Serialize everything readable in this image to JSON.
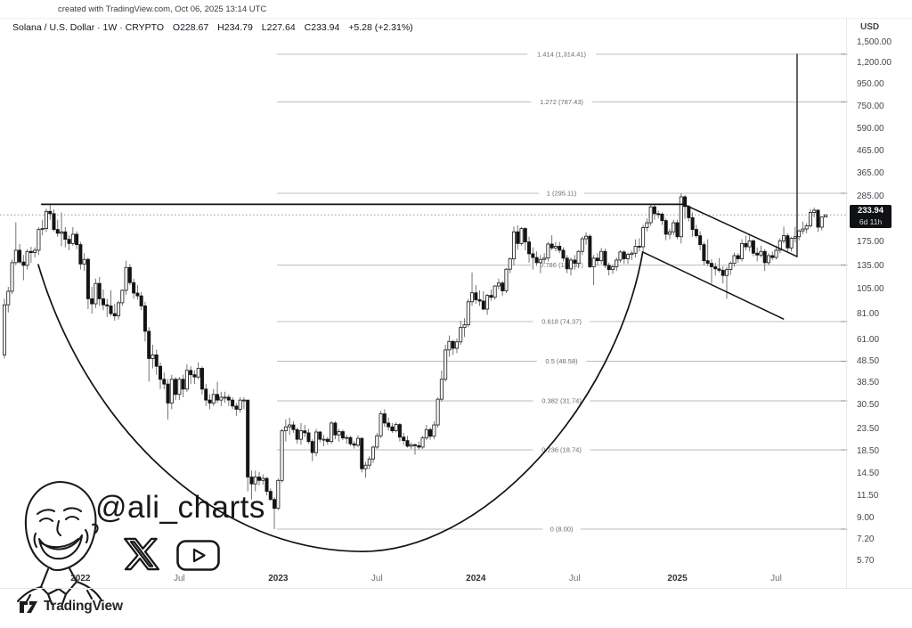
{
  "meta": {
    "created_with": "created with TradingView.com, Oct 06, 2025 13:14 UTC"
  },
  "header": {
    "symbol": "Solana / U.S. Dollar",
    "interval": "1W",
    "exchange": "CRYPTO",
    "title": "Solana / U.S. Dollar · 1W · CRYPTO",
    "open": "O228.67",
    "high": "H234.79",
    "low": "L227.64",
    "close": "C233.94",
    "change": "+5.28 (+2.31%)"
  },
  "price_scale": {
    "currency": "USD",
    "labels": [
      "1,500.00",
      "1,200.00",
      "950.00",
      "750.00",
      "590.00",
      "465.00",
      "365.00",
      "285.00",
      "175.00",
      "135.00",
      "105.00",
      "81.00",
      "61.00",
      "48.50",
      "38.50",
      "30.50",
      "23.50",
      "18.50",
      "14.50",
      "11.50",
      "9.00",
      "7.20",
      "5.70"
    ],
    "values": [
      1500,
      1200,
      950,
      750,
      590,
      465,
      365,
      285,
      175,
      135,
      105,
      81,
      61,
      48.5,
      38.5,
      30.5,
      23.5,
      18.5,
      14.5,
      11.5,
      9,
      7.2,
      5.7
    ],
    "current_price_label": "233.94",
    "current_price_value": 233.94,
    "bar_countdown": "6d 11h"
  },
  "time_scale": [
    {
      "label": "2022",
      "week": 20,
      "kind": "year"
    },
    {
      "label": "Jul",
      "week": 46,
      "kind": "month"
    },
    {
      "label": "2023",
      "week": 72,
      "kind": "year"
    },
    {
      "label": "Jul",
      "week": 98,
      "kind": "month"
    },
    {
      "label": "2024",
      "week": 124,
      "kind": "year"
    },
    {
      "label": "Jul",
      "week": 150,
      "kind": "month"
    },
    {
      "label": "2025",
      "week": 177,
      "kind": "year"
    },
    {
      "label": "Jul",
      "week": 203,
      "kind": "month"
    }
  ],
  "colors": {
    "up_candle": "#ffffff",
    "down_candle": "#141414",
    "candle_border": "#141414",
    "wick": "#63656b",
    "fib_line": "#b9bcc3",
    "fib_text": "#686b74",
    "axis_tick": "#8c8f98",
    "annotation": "#121212",
    "current_price_line": "#9598a1"
  },
  "chart_data": {
    "type": "candlestick",
    "symbol": "SOL/USD",
    "timeframe": "1W",
    "scale": "logarithmic",
    "first_week": "2021-08-16",
    "last_week": "2025-10-06",
    "note": "weekly OHLC, black-and-white TradingView style; cup-and-handle pattern with log-scale fib extension from 8.00 low (Dec 2022) to 295.11 high (Jan 2025)",
    "candles": [
      [
        52,
        95,
        50,
        89
      ],
      [
        89,
        108,
        82,
        103
      ],
      [
        103,
        145,
        100,
        140
      ],
      [
        140,
        216,
        136,
        160
      ],
      [
        160,
        171,
        138,
        141
      ],
      [
        141,
        152,
        116,
        136
      ],
      [
        136,
        162,
        130,
        158
      ],
      [
        158,
        166,
        140,
        156
      ],
      [
        156,
        165,
        148,
        160
      ],
      [
        160,
        205,
        152,
        200
      ],
      [
        200,
        222,
        188,
        202
      ],
      [
        202,
        250,
        195,
        243
      ],
      [
        243,
        260,
        222,
        237
      ],
      [
        237,
        248,
        196,
        200
      ],
      [
        200,
        222,
        185,
        192
      ],
      [
        192,
        240,
        167,
        195
      ],
      [
        195,
        205,
        165,
        180
      ],
      [
        180,
        188,
        160,
        172
      ],
      [
        172,
        205,
        168,
        190
      ],
      [
        190,
        196,
        162,
        170
      ],
      [
        170,
        175,
        130,
        138
      ],
      [
        138,
        155,
        128,
        145
      ],
      [
        145,
        148,
        85,
        95
      ],
      [
        95,
        108,
        81,
        90
      ],
      [
        90,
        118,
        86,
        112
      ],
      [
        112,
        120,
        88,
        95
      ],
      [
        95,
        105,
        84,
        89
      ],
      [
        89,
        95,
        78,
        88
      ],
      [
        88,
        104,
        79,
        81
      ],
      [
        81,
        90,
        75,
        79
      ],
      [
        79,
        93,
        76,
        91
      ],
      [
        91,
        105,
        88,
        104
      ],
      [
        104,
        143,
        99,
        133
      ],
      [
        133,
        138,
        110,
        113
      ],
      [
        113,
        118,
        95,
        101
      ],
      [
        101,
        110,
        94,
        98
      ],
      [
        98,
        102,
        84,
        88
      ],
      [
        88,
        92,
        60,
        67
      ],
      [
        67,
        70,
        39,
        50
      ],
      [
        50,
        58,
        45,
        52
      ],
      [
        52,
        55,
        42,
        46
      ],
      [
        46,
        48,
        36,
        40
      ],
      [
        40,
        43,
        36,
        38
      ],
      [
        38,
        40,
        26,
        31
      ],
      [
        31,
        42,
        29,
        40
      ],
      [
        40,
        41,
        32,
        34
      ],
      [
        34,
        41,
        32,
        40
      ],
      [
        40,
        42,
        33,
        36
      ],
      [
        36,
        47,
        35,
        44
      ],
      [
        44,
        46,
        38,
        42
      ],
      [
        42,
        44,
        38,
        41
      ],
      [
        41,
        48,
        40,
        45
      ],
      [
        45,
        46,
        34,
        36
      ],
      [
        36,
        38,
        30,
        32
      ],
      [
        32,
        34,
        29,
        31
      ],
      [
        31,
        36,
        30,
        34
      ],
      [
        34,
        39,
        31,
        32
      ],
      [
        32,
        35,
        30,
        33
      ],
      [
        33,
        35,
        31,
        33
      ],
      [
        33,
        34,
        30,
        32
      ],
      [
        32,
        33,
        29,
        30
      ],
      [
        30,
        31,
        27,
        29
      ],
      [
        29,
        33,
        28,
        32
      ],
      [
        32,
        33,
        29,
        32
      ],
      [
        32,
        32,
        12,
        14
      ],
      [
        14,
        15,
        11,
        13
      ],
      [
        13,
        15,
        12,
        14
      ],
      [
        14,
        14.8,
        12.8,
        13.5
      ],
      [
        13.5,
        14.4,
        12.9,
        13.8
      ],
      [
        13.8,
        14,
        11.5,
        12
      ],
      [
        12,
        12.4,
        10.8,
        11
      ],
      [
        11,
        11.3,
        8,
        10
      ],
      [
        10,
        13.8,
        9.8,
        13.5
      ],
      [
        13.5,
        23.5,
        13.2,
        23
      ],
      [
        23,
        26,
        20.5,
        24
      ],
      [
        24,
        26.5,
        22,
        24.5
      ],
      [
        24.5,
        25.5,
        22.5,
        23.3
      ],
      [
        23.3,
        23.8,
        20,
        21
      ],
      [
        21,
        25,
        19.8,
        23
      ],
      [
        23,
        24.5,
        21.5,
        22.5
      ],
      [
        22.5,
        23.5,
        20,
        20.5
      ],
      [
        20.5,
        21,
        16.6,
        18.2
      ],
      [
        18.2,
        23.5,
        17.5,
        22.7
      ],
      [
        22.7,
        23,
        20.3,
        21
      ],
      [
        21,
        22,
        19.5,
        21
      ],
      [
        21,
        21.5,
        19.8,
        20.5
      ],
      [
        20.5,
        25.5,
        20,
        25
      ],
      [
        25,
        25.5,
        21,
        22
      ],
      [
        22,
        23.5,
        20.5,
        22.8
      ],
      [
        22.8,
        23.3,
        20.8,
        21.3
      ],
      [
        21.3,
        22,
        20,
        21.4
      ],
      [
        21.4,
        21.8,
        19.6,
        20
      ],
      [
        20,
        20.6,
        19,
        19.7
      ],
      [
        19.7,
        21.9,
        19.3,
        21.2
      ],
      [
        21.2,
        21.5,
        14.7,
        15.3
      ],
      [
        15.3,
        16.5,
        13.9,
        15.9
      ],
      [
        15.9,
        17.5,
        15.2,
        17
      ],
      [
        17,
        19.6,
        16.3,
        19.3
      ],
      [
        19.3,
        22.5,
        18.9,
        21.8
      ],
      [
        21.8,
        28.5,
        21.3,
        27.6
      ],
      [
        27.6,
        29,
        24,
        25
      ],
      [
        25,
        26.5,
        23,
        24
      ],
      [
        24,
        25,
        22.5,
        23
      ],
      [
        23,
        25.2,
        22.6,
        24.6
      ],
      [
        24.6,
        25,
        20.5,
        21.5
      ],
      [
        21.5,
        22.5,
        19.8,
        20.7
      ],
      [
        20.7,
        21.8,
        19.2,
        19.5
      ],
      [
        19.5,
        20.3,
        18.9,
        19.8
      ],
      [
        19.8,
        20.1,
        17.8,
        19.6
      ],
      [
        19.6,
        20.5,
        18.8,
        19.3
      ],
      [
        19.3,
        21.8,
        18.9,
        21.3
      ],
      [
        21.3,
        24.5,
        20.8,
        23.3
      ],
      [
        23.3,
        23.8,
        20.9,
        21.7
      ],
      [
        21.7,
        25.5,
        21,
        24.5
      ],
      [
        24.5,
        32.9,
        23.8,
        32.3
      ],
      [
        32.3,
        44,
        31.5,
        40
      ],
      [
        40,
        58,
        39,
        54.8
      ],
      [
        54.8,
        64,
        51,
        60.1
      ],
      [
        60.1,
        61,
        52,
        55.8
      ],
      [
        55.8,
        62,
        53,
        59.8
      ],
      [
        59.8,
        75,
        58,
        69.8
      ],
      [
        69.8,
        77,
        63,
        71.8
      ],
      [
        71.8,
        95,
        70,
        92
      ],
      [
        92,
        126,
        88,
        101.3
      ],
      [
        101.3,
        110,
        90,
        94
      ],
      [
        94,
        104,
        88,
        92.7
      ],
      [
        92.7,
        103,
        84,
        85
      ],
      [
        85,
        100,
        79.9,
        98.5
      ],
      [
        98.5,
        105,
        93,
        96.5
      ],
      [
        96.5,
        110,
        94,
        109
      ],
      [
        109,
        118,
        105,
        112.5
      ],
      [
        112.5,
        115,
        98,
        103.5
      ],
      [
        103.5,
        132,
        101,
        130.5
      ],
      [
        130.5,
        148,
        125,
        145.8
      ],
      [
        145.8,
        206,
        136,
        195
      ],
      [
        195,
        209,
        161,
        172
      ],
      [
        172,
        205,
        168,
        202
      ],
      [
        202,
        205,
        160,
        175
      ],
      [
        175,
        185,
        140,
        154
      ],
      [
        154,
        165,
        130,
        148
      ],
      [
        148,
        158,
        135,
        140
      ],
      [
        140,
        152,
        125,
        145
      ],
      [
        145,
        155,
        138,
        147
      ],
      [
        147,
        175,
        142,
        171
      ],
      [
        171,
        188,
        160,
        164
      ],
      [
        164,
        175,
        158,
        167
      ],
      [
        167,
        175,
        155,
        160
      ],
      [
        160,
        165,
        142,
        147
      ],
      [
        147,
        152,
        125,
        131
      ],
      [
        131,
        148,
        122,
        144
      ],
      [
        144,
        152,
        130,
        139
      ],
      [
        139,
        160,
        132,
        158
      ],
      [
        158,
        185,
        152,
        181
      ],
      [
        181,
        194,
        170,
        186
      ],
      [
        186,
        190,
        132,
        134
      ],
      [
        134,
        152,
        110,
        147
      ],
      [
        147,
        155,
        136,
        143
      ],
      [
        143,
        164,
        138,
        158
      ],
      [
        158,
        163,
        132,
        136
      ],
      [
        136,
        140,
        122,
        130
      ],
      [
        130,
        137,
        124,
        134
      ],
      [
        134,
        148,
        128,
        144
      ],
      [
        144,
        160,
        140,
        157
      ],
      [
        157,
        160,
        138,
        146
      ],
      [
        146,
        156,
        138,
        153
      ],
      [
        153,
        159,
        144,
        155
      ],
      [
        155,
        180,
        148,
        167
      ],
      [
        167,
        182,
        158,
        166
      ],
      [
        166,
        210,
        158,
        204
      ],
      [
        204,
        225,
        196,
        215
      ],
      [
        215,
        264,
        208,
        255
      ],
      [
        255,
        260,
        222,
        237
      ],
      [
        237,
        245,
        225,
        236
      ],
      [
        236,
        240,
        210,
        220
      ],
      [
        220,
        225,
        178,
        190
      ],
      [
        190,
        202,
        180,
        195
      ],
      [
        195,
        222,
        188,
        215
      ],
      [
        215,
        222,
        180,
        185
      ],
      [
        185,
        295,
        172,
        284
      ],
      [
        284,
        289,
        224,
        256
      ],
      [
        256,
        260,
        218,
        227
      ],
      [
        227,
        240,
        185,
        200
      ],
      [
        200,
        210,
        183,
        187
      ],
      [
        187,
        196,
        160,
        170
      ],
      [
        170,
        175,
        136,
        143
      ],
      [
        143,
        180,
        135,
        139
      ],
      [
        139,
        145,
        112,
        134
      ],
      [
        134,
        140,
        122,
        131
      ],
      [
        131,
        147,
        126,
        129
      ],
      [
        129,
        135,
        112,
        122
      ],
      [
        122,
        134,
        95,
        130
      ],
      [
        130,
        142,
        123,
        139
      ],
      [
        139,
        156,
        134,
        151
      ],
      [
        151,
        155,
        140,
        146
      ],
      [
        146,
        180,
        142,
        172
      ],
      [
        172,
        187,
        160,
        166
      ],
      [
        166,
        188,
        158,
        177
      ],
      [
        177,
        180,
        150,
        155
      ],
      [
        155,
        165,
        142,
        152
      ],
      [
        152,
        168,
        148,
        158
      ],
      [
        158,
        162,
        128,
        140
      ],
      [
        140,
        155,
        136,
        151
      ],
      [
        151,
        158,
        144,
        148
      ],
      [
        148,
        168,
        145,
        160
      ],
      [
        160,
        182,
        155,
        177
      ],
      [
        177,
        206,
        172,
        187
      ],
      [
        187,
        192,
        156,
        164
      ],
      [
        164,
        185,
        158,
        182
      ],
      [
        182,
        206,
        174,
        185
      ],
      [
        185,
        200,
        178,
        197
      ],
      [
        197,
        218,
        190,
        201
      ],
      [
        201,
        214,
        192,
        208
      ],
      [
        208,
        249,
        204,
        240
      ],
      [
        240,
        253,
        228,
        246
      ],
      [
        246,
        248,
        195,
        205
      ],
      [
        205,
        230,
        198,
        228.7
      ],
      [
        228.67,
        234.79,
        227.64,
        233.94
      ]
    ],
    "fib_extension": {
      "anchor_low": 8.0,
      "anchor_high": 295.11,
      "line_start_week": 71.7,
      "levels": [
        {
          "ratio": "1.414",
          "value": "1,314.41",
          "price": 1314.41,
          "label": "1.414 (1,314.41)"
        },
        {
          "ratio": "1.272",
          "value": "787.43",
          "price": 787.43,
          "label": "1.272 (787.43)"
        },
        {
          "ratio": "1",
          "value": "295.11",
          "price": 295.11,
          "label": "1 (295.11)"
        },
        {
          "ratio": "0.786",
          "value": "136.37",
          "price": 136.37,
          "label": "0.786 (136.37)"
        },
        {
          "ratio": "0.618",
          "value": "74.37",
          "price": 74.37,
          "label": "0.618 (74.37)"
        },
        {
          "ratio": "0.5",
          "value": "48.58",
          "price": 48.58,
          "label": "0.5 (48.58)"
        },
        {
          "ratio": "0.382",
          "value": "31.74",
          "price": 31.74,
          "label": "0.382 (31.74)"
        },
        {
          "ratio": "0.236",
          "value": "18.74",
          "price": 18.74,
          "label": "0.236 (18.74)"
        },
        {
          "ratio": "0",
          "value": "8.00",
          "price": 8,
          "label": "0 (8.00)"
        }
      ]
    },
    "annotations": {
      "resistance_line": {
        "from_week": 9.8,
        "to_week": 178.7,
        "price": 262
      },
      "cup_curve": {
        "start": {
          "week": 8.9,
          "price": 137
        },
        "bottom": {
          "week": 92.5,
          "price": 6.3
        },
        "end": {
          "week": 167.9,
          "price": 157
        }
      },
      "handle_upper_line": {
        "from": {
          "week": 178.7,
          "price": 262
        },
        "to": {
          "week": 208.5,
          "price": 149.5
        }
      },
      "handle_lower_line": {
        "from": {
          "week": 167.9,
          "price": 157
        },
        "to": {
          "week": 204.9,
          "price": 76.5
        }
      },
      "breakout_target_line": {
        "week": 208.5,
        "from_price": 149.5,
        "to_price": 1314.41
      }
    }
  },
  "watermark": {
    "handle": "@ali_charts",
    "icons": [
      "artist-portrait",
      "x-logo",
      "youtube-logo"
    ]
  },
  "brand": {
    "name": "TradingView"
  }
}
